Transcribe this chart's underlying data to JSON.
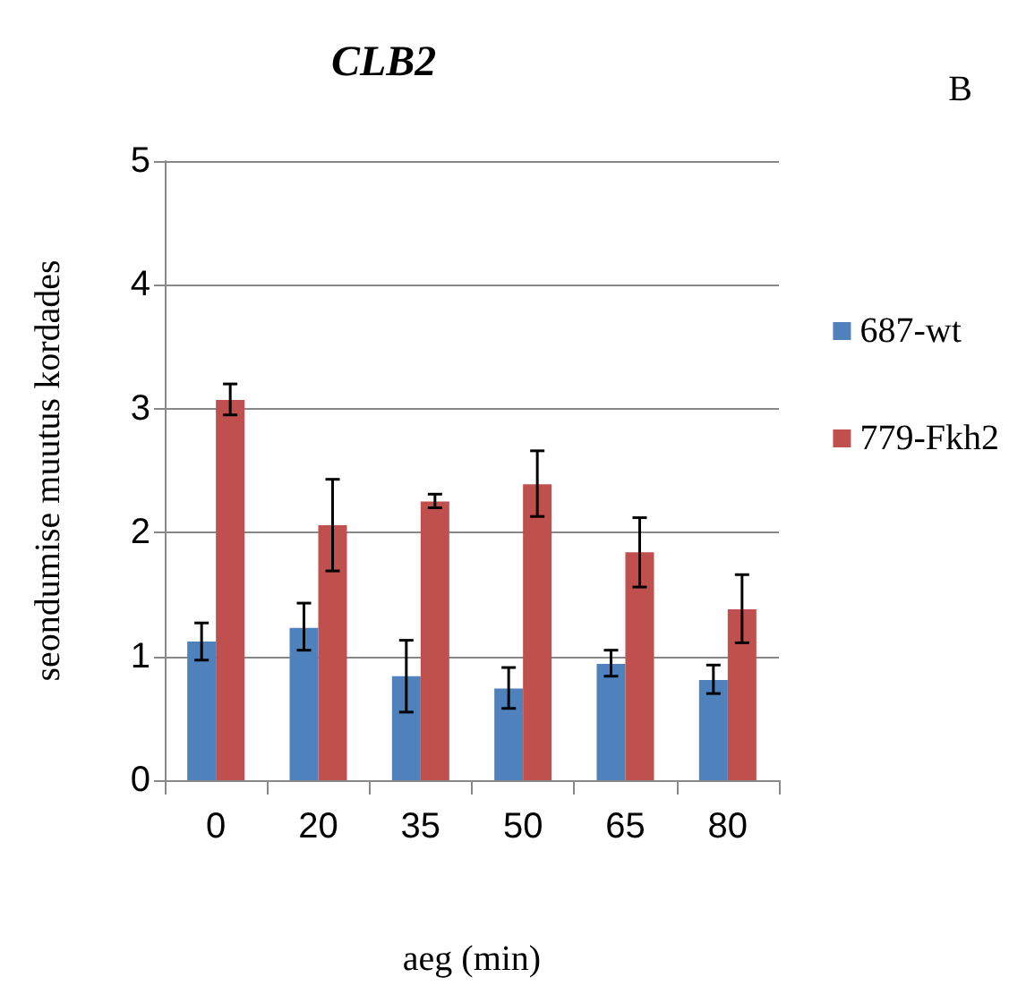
{
  "chart_data": {
    "type": "bar",
    "title": "CLB2",
    "xlabel": "aeg (min)",
    "ylabel": "seondumise muutus kordades",
    "annotations": [
      "B"
    ],
    "categories": [
      "0",
      "20",
      "35",
      "50",
      "65",
      "80"
    ],
    "series": [
      {
        "name": "687-wt",
        "color": "#4f81bd",
        "values": [
          1.12,
          1.23,
          0.84,
          0.74,
          0.94,
          0.81
        ],
        "errors": [
          [
            0.97,
            1.27
          ],
          [
            1.05,
            1.43
          ],
          [
            0.55,
            1.13
          ],
          [
            0.58,
            0.91
          ],
          [
            0.84,
            1.05
          ],
          [
            0.7,
            0.93
          ]
        ]
      },
      {
        "name": "779-Fkh2",
        "color": "#c0504d",
        "values": [
          3.07,
          2.06,
          2.25,
          2.39,
          1.84,
          1.38
        ],
        "errors": [
          [
            2.95,
            3.2
          ],
          [
            1.69,
            2.43
          ],
          [
            2.2,
            2.31
          ],
          [
            2.13,
            2.66
          ],
          [
            1.56,
            2.12
          ],
          [
            1.11,
            1.66
          ]
        ]
      }
    ],
    "ylim": [
      0,
      5
    ],
    "yticks": [
      0,
      1,
      2,
      3,
      4,
      5
    ],
    "grid": "y",
    "legend": "right"
  }
}
